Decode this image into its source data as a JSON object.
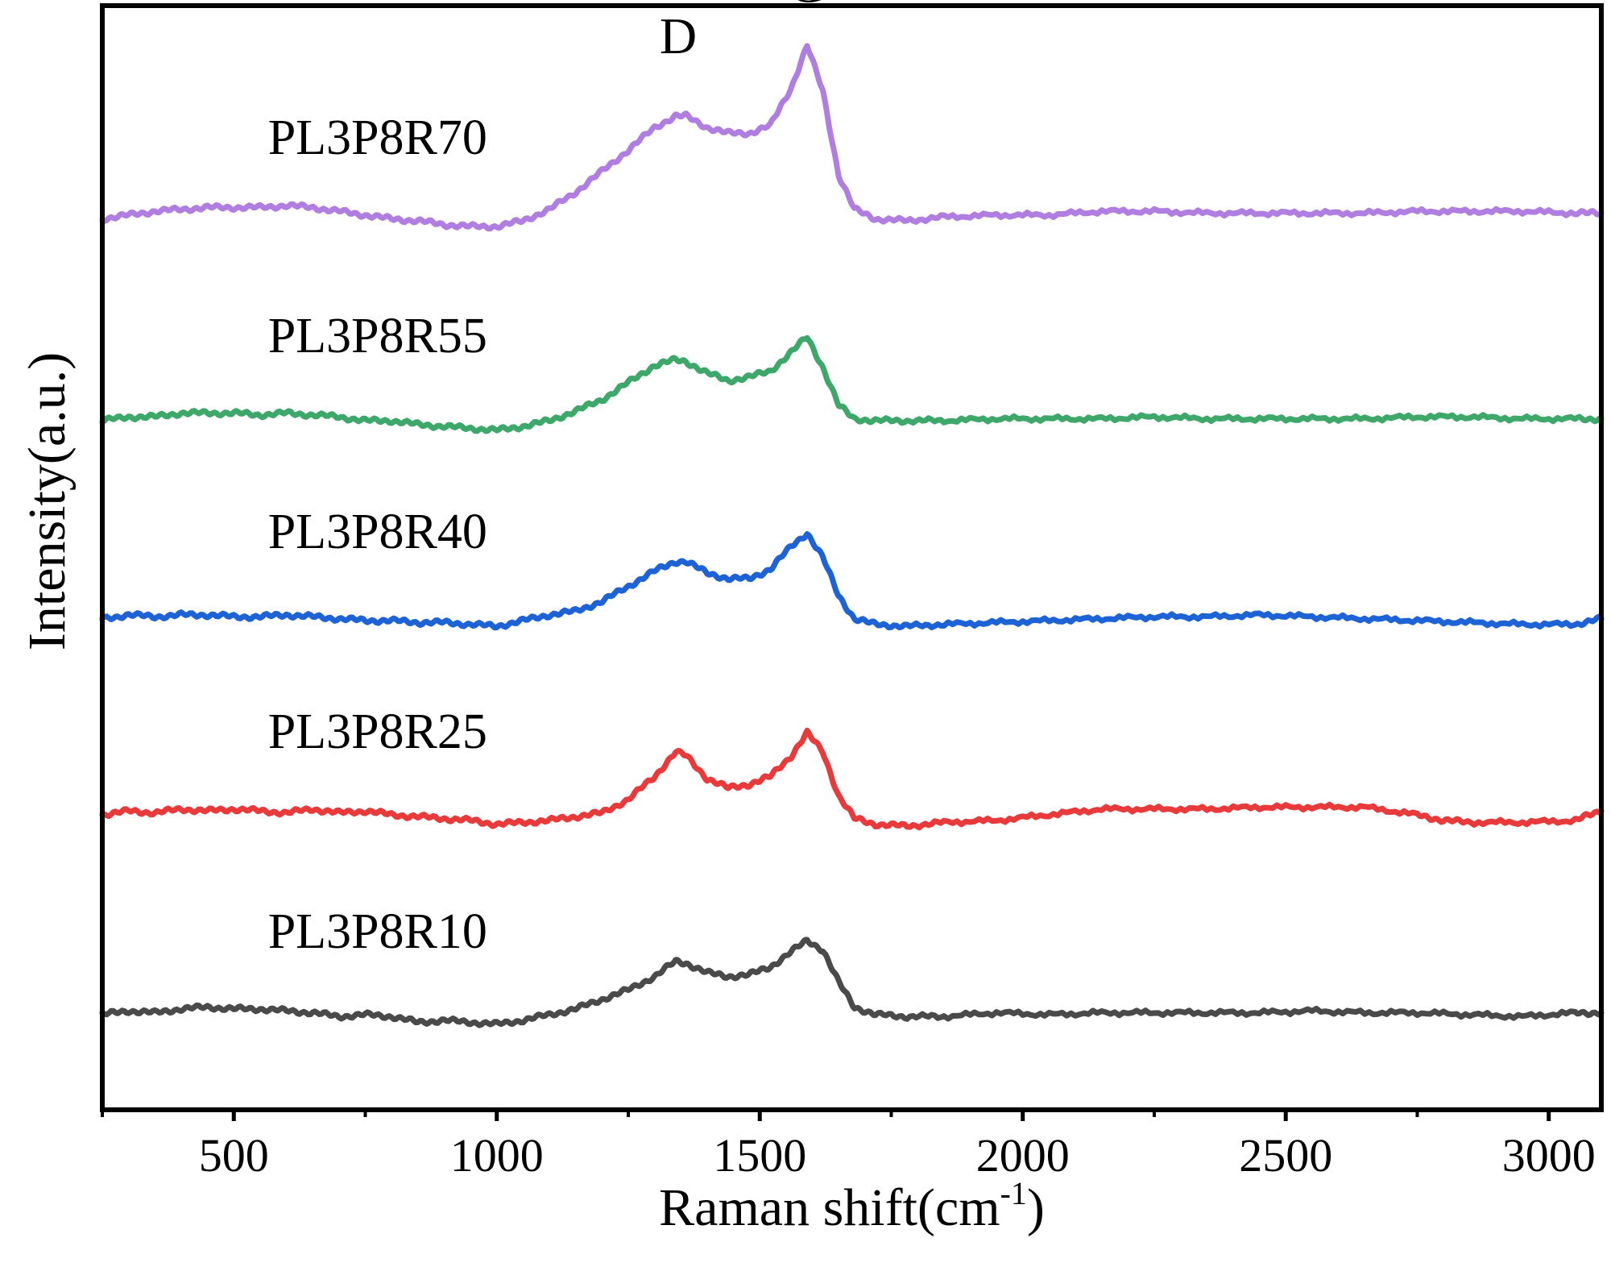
{
  "chart_data": {
    "type": "line",
    "xlabel": "Raman shift(cm",
    "xlabel_sup": "-1",
    "xlabel_close": ")",
    "ylabel": "Intensity(a.u.)",
    "xlim": [
      250,
      3100
    ],
    "ylim": [
      0,
      5.8
    ],
    "x_ticks": [
      500,
      1000,
      1500,
      2000,
      2500,
      3000
    ],
    "x_minor_ticks": [
      250,
      750,
      1250,
      1750,
      2250,
      2750
    ],
    "y_ticks": [],
    "grid": false,
    "peak_annotations": [
      {
        "label": "D",
        "x": 1345,
        "y": 5.55
      },
      {
        "label": "G",
        "x": 1590,
        "y": 5.82
      }
    ],
    "series": [
      {
        "name": "PL3P8R10",
        "color": "#4a4a4a",
        "label_pos": {
          "x": 565,
          "y": 0.85
        },
        "x": [
          250,
          300,
          350,
          400,
          450,
          500,
          550,
          600,
          650,
          700,
          750,
          800,
          850,
          900,
          950,
          1000,
          1050,
          1100,
          1150,
          1200,
          1250,
          1300,
          1340,
          1360,
          1400,
          1440,
          1480,
          1520,
          1560,
          1590,
          1620,
          1650,
          1680,
          1720,
          1780,
          1850,
          1950,
          2050,
          2150,
          2250,
          2350,
          2450,
          2550,
          2650,
          2750,
          2850,
          2950,
          3050,
          3100
        ],
        "y": [
          0.5,
          0.52,
          0.51,
          0.53,
          0.54,
          0.53,
          0.53,
          0.52,
          0.51,
          0.49,
          0.5,
          0.49,
          0.46,
          0.47,
          0.46,
          0.45,
          0.47,
          0.5,
          0.53,
          0.58,
          0.63,
          0.7,
          0.78,
          0.77,
          0.72,
          0.7,
          0.71,
          0.75,
          0.83,
          0.89,
          0.84,
          0.67,
          0.54,
          0.5,
          0.49,
          0.49,
          0.51,
          0.5,
          0.51,
          0.51,
          0.51,
          0.51,
          0.52,
          0.51,
          0.51,
          0.5,
          0.49,
          0.51,
          0.51
        ]
      },
      {
        "name": "PL3P8R25",
        "color": "#e83a3a",
        "label_pos": {
          "x": 565,
          "y": 1.9
        },
        "x": [
          250,
          300,
          350,
          400,
          450,
          500,
          550,
          600,
          650,
          700,
          750,
          800,
          850,
          900,
          950,
          1000,
          1050,
          1100,
          1150,
          1200,
          1250,
          1300,
          1340,
          1360,
          1400,
          1440,
          1480,
          1520,
          1560,
          1590,
          1620,
          1650,
          1680,
          1720,
          1780,
          1850,
          1950,
          2050,
          2150,
          2250,
          2350,
          2450,
          2550,
          2650,
          2750,
          2800,
          2850,
          2950,
          3050,
          3100
        ],
        "y": [
          1.55,
          1.57,
          1.56,
          1.58,
          1.57,
          1.58,
          1.57,
          1.56,
          1.58,
          1.56,
          1.57,
          1.55,
          1.54,
          1.53,
          1.52,
          1.5,
          1.51,
          1.52,
          1.54,
          1.56,
          1.63,
          1.75,
          1.88,
          1.86,
          1.74,
          1.69,
          1.71,
          1.75,
          1.86,
          1.98,
          1.88,
          1.65,
          1.53,
          1.5,
          1.49,
          1.51,
          1.52,
          1.55,
          1.58,
          1.58,
          1.58,
          1.59,
          1.59,
          1.59,
          1.55,
          1.52,
          1.51,
          1.51,
          1.52,
          1.57
        ]
      },
      {
        "name": "PL3P8R40",
        "color": "#1e63d6",
        "label_pos": {
          "x": 565,
          "y": 2.95
        },
        "x": [
          250,
          300,
          350,
          400,
          450,
          500,
          550,
          600,
          650,
          700,
          750,
          800,
          850,
          900,
          950,
          1000,
          1050,
          1100,
          1150,
          1200,
          1250,
          1300,
          1340,
          1360,
          1400,
          1440,
          1480,
          1520,
          1560,
          1590,
          1620,
          1650,
          1680,
          1720,
          1780,
          1850,
          1950,
          2050,
          2150,
          2250,
          2350,
          2450,
          2550,
          2650,
          2750,
          2850,
          2950,
          3050,
          3100
        ],
        "y": [
          2.58,
          2.6,
          2.59,
          2.6,
          2.6,
          2.59,
          2.59,
          2.6,
          2.59,
          2.58,
          2.57,
          2.57,
          2.56,
          2.56,
          2.55,
          2.54,
          2.57,
          2.6,
          2.62,
          2.67,
          2.75,
          2.83,
          2.88,
          2.88,
          2.82,
          2.79,
          2.79,
          2.84,
          2.96,
          3.03,
          2.9,
          2.7,
          2.58,
          2.55,
          2.54,
          2.55,
          2.56,
          2.57,
          2.58,
          2.59,
          2.59,
          2.6,
          2.59,
          2.58,
          2.57,
          2.56,
          2.55,
          2.55,
          2.58
        ]
      },
      {
        "name": "PL3P8R55",
        "color": "#3ea86a",
        "label_pos": {
          "x": 565,
          "y": 3.98
        },
        "x": [
          250,
          300,
          350,
          400,
          450,
          500,
          550,
          600,
          650,
          700,
          750,
          800,
          850,
          900,
          950,
          1000,
          1050,
          1100,
          1150,
          1200,
          1250,
          1300,
          1340,
          1360,
          1400,
          1440,
          1480,
          1520,
          1560,
          1590,
          1620,
          1650,
          1680,
          1720,
          1780,
          1850,
          1950,
          2050,
          2150,
          2250,
          2350,
          2450,
          2550,
          2650,
          2750,
          2850,
          2950,
          3050,
          3100
        ],
        "y": [
          3.62,
          3.64,
          3.64,
          3.66,
          3.66,
          3.66,
          3.65,
          3.66,
          3.65,
          3.64,
          3.62,
          3.62,
          3.6,
          3.59,
          3.58,
          3.57,
          3.59,
          3.62,
          3.67,
          3.73,
          3.82,
          3.91,
          3.94,
          3.93,
          3.87,
          3.83,
          3.85,
          3.88,
          3.98,
          4.06,
          3.9,
          3.7,
          3.63,
          3.62,
          3.62,
          3.62,
          3.63,
          3.63,
          3.63,
          3.64,
          3.63,
          3.63,
          3.63,
          3.63,
          3.64,
          3.64,
          3.63,
          3.63,
          3.63
        ]
      },
      {
        "name": "PL3P8R70",
        "color": "#b07ee0",
        "label_pos": {
          "x": 565,
          "y": 5.02
        },
        "x": [
          250,
          300,
          350,
          400,
          450,
          500,
          550,
          600,
          650,
          700,
          750,
          800,
          850,
          900,
          950,
          1000,
          1050,
          1100,
          1150,
          1200,
          1250,
          1300,
          1340,
          1360,
          1400,
          1440,
          1480,
          1520,
          1560,
          1590,
          1620,
          1650,
          1680,
          1720,
          1780,
          1850,
          1950,
          2050,
          2150,
          2250,
          2350,
          2450,
          2550,
          2650,
          2750,
          2850,
          2950,
          3050,
          3100
        ],
        "y": [
          4.68,
          4.7,
          4.72,
          4.73,
          4.74,
          4.74,
          4.74,
          4.75,
          4.74,
          4.72,
          4.7,
          4.68,
          4.67,
          4.65,
          4.64,
          4.64,
          4.67,
          4.73,
          4.82,
          4.93,
          5.04,
          5.16,
          5.22,
          5.22,
          5.16,
          5.13,
          5.13,
          5.17,
          5.37,
          5.59,
          5.35,
          4.91,
          4.73,
          4.68,
          4.67,
          4.69,
          4.7,
          4.7,
          4.72,
          4.72,
          4.71,
          4.71,
          4.71,
          4.71,
          4.72,
          4.72,
          4.72,
          4.71,
          4.71
        ]
      }
    ]
  }
}
